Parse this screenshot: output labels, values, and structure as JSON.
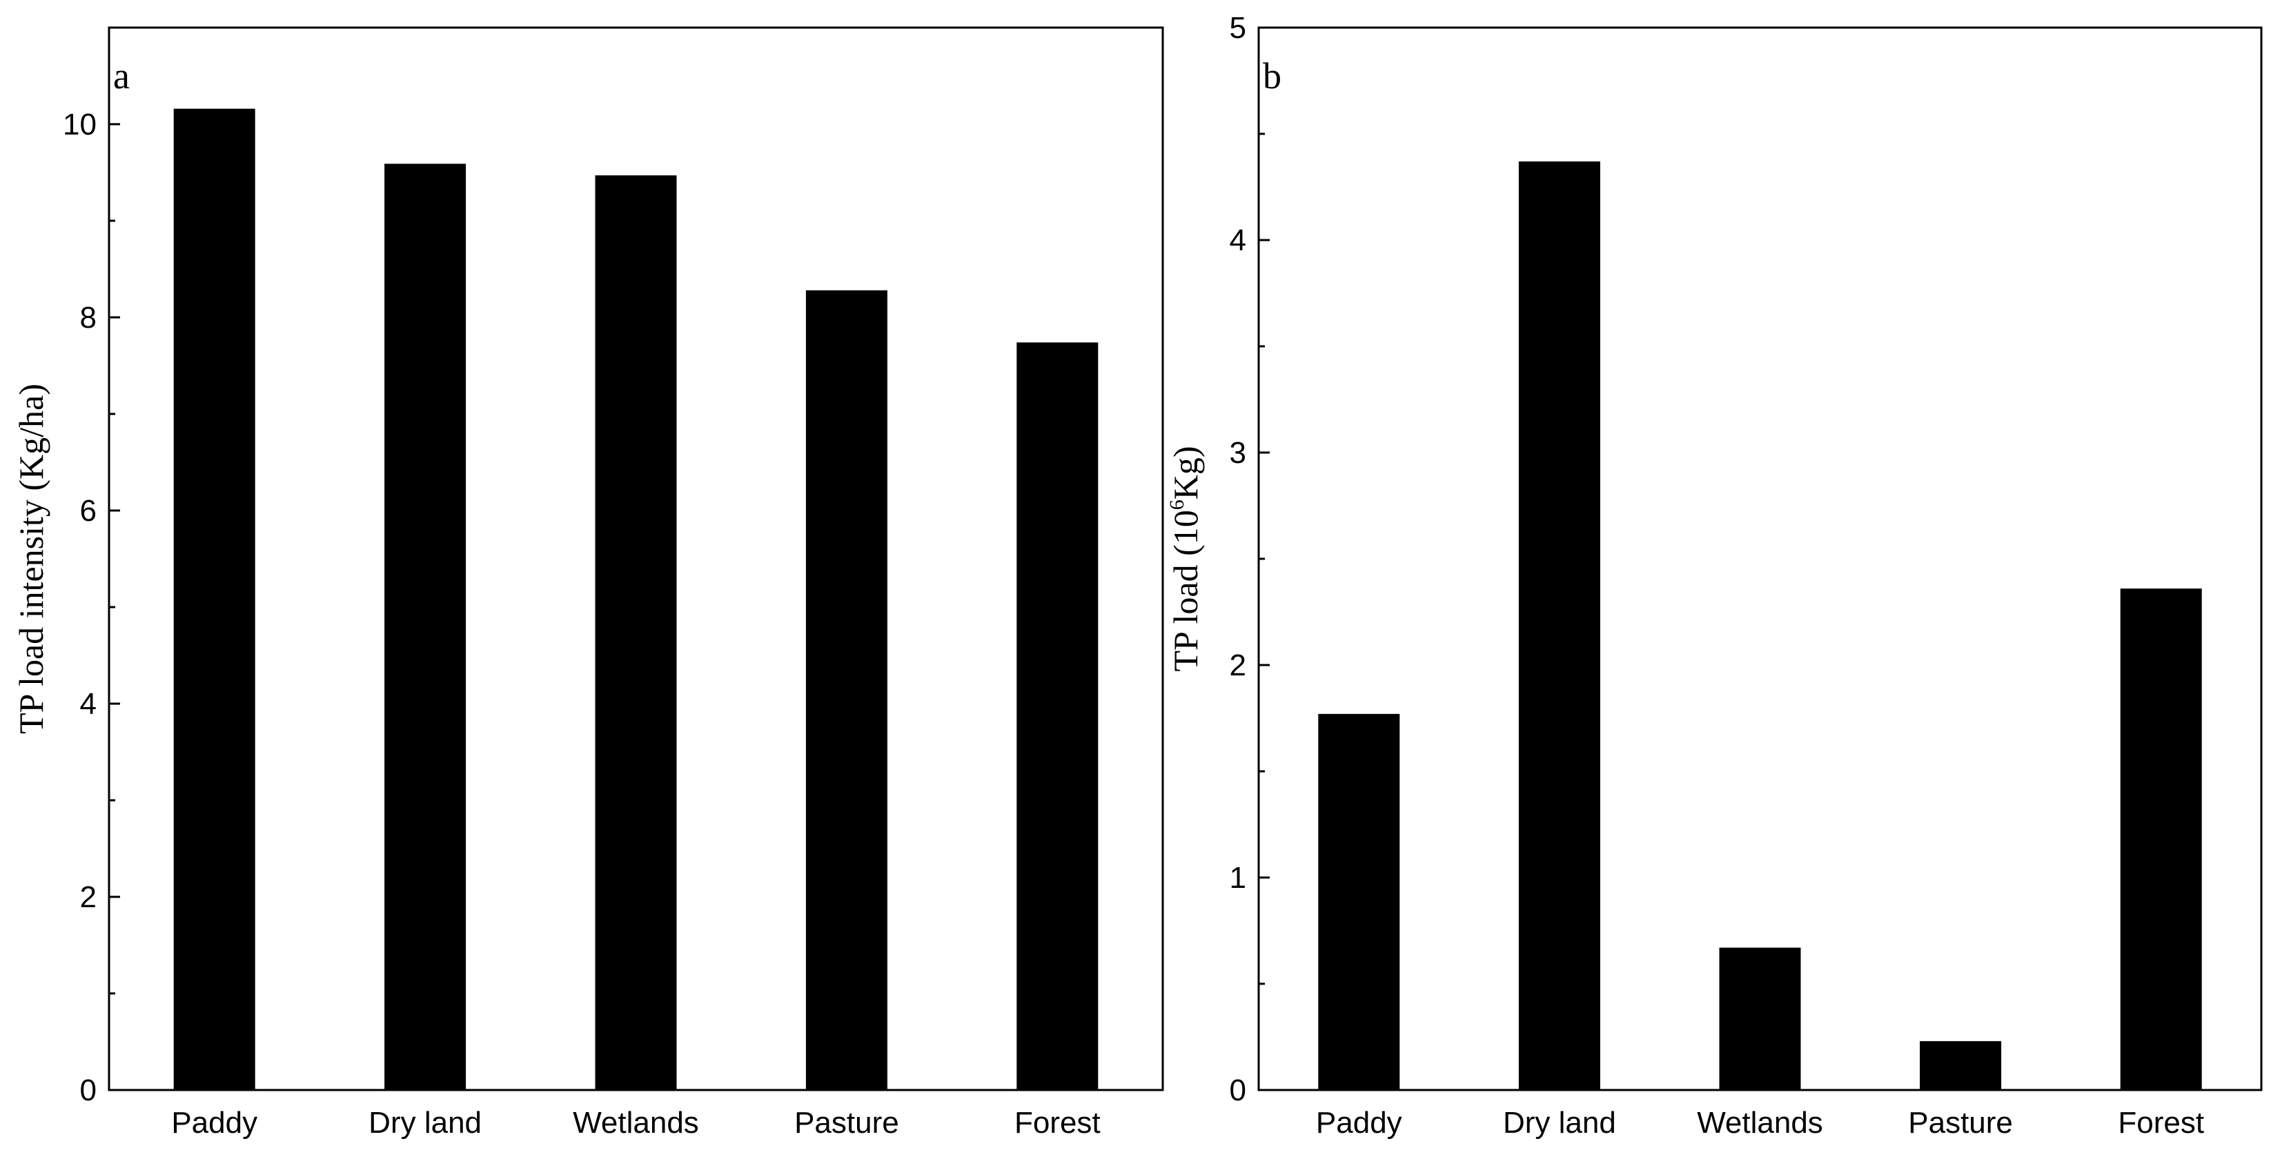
{
  "chart_data": [
    {
      "type": "bar",
      "panel_label": "a",
      "categories": [
        "Paddy",
        "Dry land",
        "Wetlands",
        "Pasture",
        "Forest"
      ],
      "values": [
        10.16,
        9.59,
        9.47,
        8.28,
        7.74
      ],
      "xlabel": "",
      "ylabel": "TP load intensity (Kg/ha)",
      "ylim": [
        0,
        11
      ],
      "yticks": [
        0,
        2,
        4,
        6,
        8,
        10
      ],
      "yticks_minor_step": 1,
      "grid": false,
      "bar_color": "#000000"
    },
    {
      "type": "bar",
      "panel_label": "b",
      "categories": [
        "Paddy",
        "Dry land",
        "Wetlands",
        "Pasture",
        "Forest"
      ],
      "values": [
        1.77,
        4.37,
        0.67,
        0.23,
        2.36
      ],
      "xlabel": "",
      "ylabel": "TP load (10",
      "ylabel_superscript": "6",
      "ylabel_suffix": "Kg)",
      "ylim": [
        0,
        5
      ],
      "yticks": [
        0,
        1,
        2,
        3,
        4,
        5
      ],
      "yticks_minor_step": 0.5,
      "grid": false,
      "bar_color": "#000000"
    }
  ]
}
